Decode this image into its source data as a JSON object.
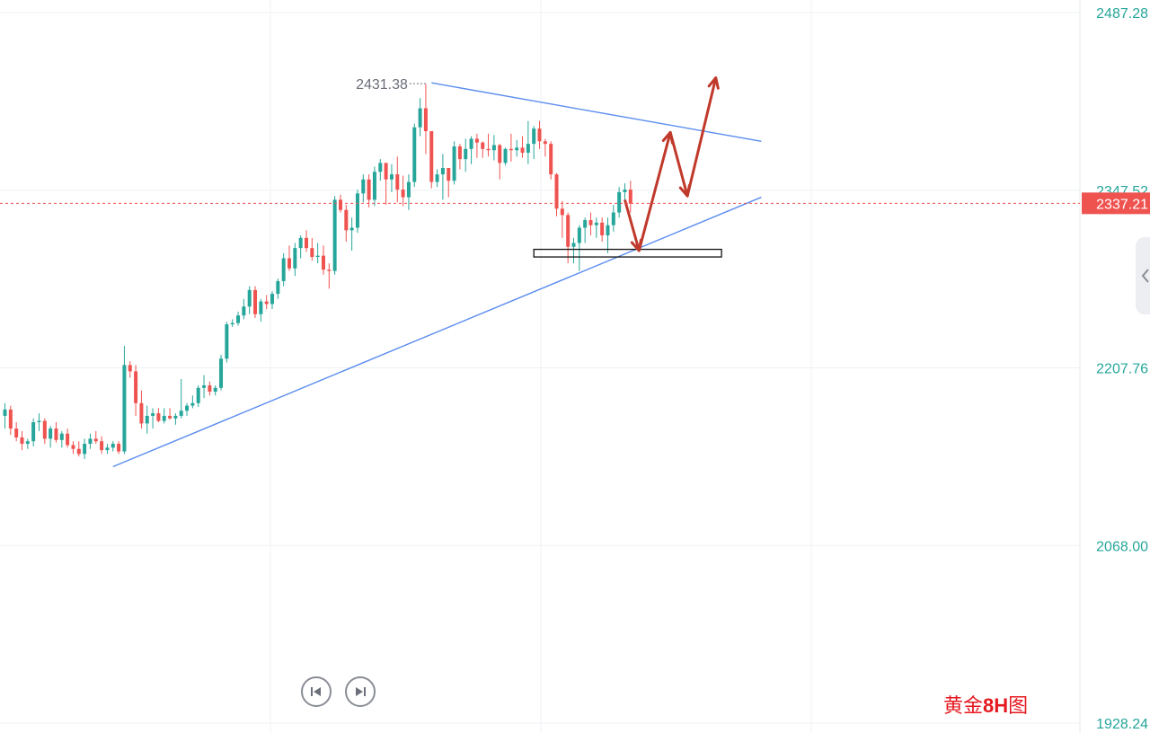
{
  "chart_data": {
    "type": "candlestick",
    "ohlc_notation": "[open, high, low, close]",
    "y_axis": {
      "position": "right",
      "ticks": [
        2487.28,
        2347.52,
        2207.76,
        2068.0,
        1928.24
      ],
      "tick_labels": [
        "2487.28",
        "2347.52",
        "2207.76",
        "2068.00",
        "1928.24"
      ]
    },
    "ylim": [
      1928.24,
      2487.28
    ],
    "grid": true,
    "last_price": 2337.21,
    "last_price_label": "2337.21",
    "peak_value": 2431.38,
    "peak_label": "2431.38",
    "candles": [
      [
        2170,
        2180,
        2160,
        2175
      ],
      [
        2175,
        2178,
        2155,
        2160
      ],
      [
        2160,
        2165,
        2150,
        2153
      ],
      [
        2153,
        2158,
        2143,
        2148
      ],
      [
        2148,
        2152,
        2144,
        2150
      ],
      [
        2150,
        2168,
        2146,
        2165
      ],
      [
        2165,
        2172,
        2158,
        2166
      ],
      [
        2166,
        2168,
        2148,
        2152
      ],
      [
        2152,
        2162,
        2145,
        2160
      ],
      [
        2160,
        2165,
        2149,
        2151
      ],
      [
        2151,
        2158,
        2145,
        2156
      ],
      [
        2156,
        2160,
        2145,
        2147
      ],
      [
        2147,
        2150,
        2140,
        2144
      ],
      [
        2144,
        2150,
        2138,
        2140
      ],
      [
        2140,
        2152,
        2136,
        2148
      ],
      [
        2148,
        2156,
        2144,
        2152
      ],
      [
        2152,
        2158,
        2148,
        2150
      ],
      [
        2150,
        2154,
        2140,
        2143
      ],
      [
        2143,
        2148,
        2140,
        2145
      ],
      [
        2145,
        2150,
        2142,
        2148
      ],
      [
        2148,
        2150,
        2140,
        2142
      ],
      [
        2142,
        2225,
        2140,
        2210
      ],
      [
        2210,
        2213,
        2200,
        2205
      ],
      [
        2205,
        2210,
        2170,
        2180
      ],
      [
        2180,
        2190,
        2160,
        2164
      ],
      [
        2164,
        2178,
        2156,
        2170
      ],
      [
        2170,
        2176,
        2160,
        2172
      ],
      [
        2172,
        2176,
        2165,
        2166
      ],
      [
        2166,
        2176,
        2164,
        2170
      ],
      [
        2170,
        2176,
        2167,
        2168
      ],
      [
        2168,
        2172,
        2163,
        2170
      ],
      [
        2170,
        2199,
        2168,
        2174
      ],
      [
        2174,
        2180,
        2170,
        2178
      ],
      [
        2178,
        2186,
        2176,
        2180
      ],
      [
        2180,
        2194,
        2177,
        2192
      ],
      [
        2192,
        2202,
        2184,
        2194
      ],
      [
        2194,
        2197,
        2186,
        2189
      ],
      [
        2189,
        2194,
        2186,
        2192
      ],
      [
        2192,
        2218,
        2190,
        2215
      ],
      [
        2215,
        2244,
        2212,
        2242
      ],
      [
        2242,
        2246,
        2240,
        2243
      ],
      [
        2243,
        2252,
        2241,
        2249
      ],
      [
        2249,
        2262,
        2246,
        2256
      ],
      [
        2256,
        2272,
        2250,
        2269
      ],
      [
        2269,
        2272,
        2247,
        2250
      ],
      [
        2250,
        2262,
        2244,
        2260
      ],
      [
        2260,
        2265,
        2254,
        2258
      ],
      [
        2258,
        2268,
        2254,
        2266
      ],
      [
        2266,
        2278,
        2262,
        2276
      ],
      [
        2276,
        2298,
        2272,
        2294
      ],
      [
        2294,
        2304,
        2284,
        2286
      ],
      [
        2286,
        2306,
        2280,
        2302
      ],
      [
        2302,
        2312,
        2294,
        2310
      ],
      [
        2310,
        2316,
        2299,
        2302
      ],
      [
        2302,
        2310,
        2292,
        2295
      ],
      [
        2295,
        2306,
        2290,
        2296
      ],
      [
        2296,
        2304,
        2281,
        2285
      ],
      [
        2285,
        2290,
        2270,
        2284
      ],
      [
        2284,
        2343,
        2281,
        2340
      ],
      [
        2340,
        2344,
        2330,
        2332
      ],
      [
        2332,
        2336,
        2307,
        2316
      ],
      [
        2316,
        2326,
        2300,
        2318
      ],
      [
        2318,
        2348,
        2314,
        2345
      ],
      [
        2345,
        2360,
        2338,
        2356
      ],
      [
        2356,
        2360,
        2334,
        2340
      ],
      [
        2340,
        2366,
        2335,
        2362
      ],
      [
        2362,
        2372,
        2355,
        2369
      ],
      [
        2369,
        2366,
        2336,
        2356
      ],
      [
        2356,
        2368,
        2346,
        2360
      ],
      [
        2360,
        2374,
        2338,
        2348
      ],
      [
        2348,
        2359,
        2335,
        2342
      ],
      [
        2342,
        2360,
        2332,
        2354
      ],
      [
        2354,
        2400,
        2350,
        2397
      ],
      [
        2397,
        2420,
        2390,
        2412
      ],
      [
        2412,
        2431,
        2376,
        2394
      ],
      [
        2394,
        2390,
        2349,
        2354
      ],
      [
        2354,
        2364,
        2350,
        2360
      ],
      [
        2360,
        2376,
        2340,
        2365
      ],
      [
        2365,
        2362,
        2342,
        2355
      ],
      [
        2355,
        2386,
        2352,
        2382
      ],
      [
        2382,
        2384,
        2364,
        2372
      ],
      [
        2372,
        2388,
        2362,
        2380
      ],
      [
        2380,
        2390,
        2368,
        2388
      ],
      [
        2388,
        2392,
        2373,
        2385
      ],
      [
        2385,
        2386,
        2373,
        2380
      ],
      [
        2380,
        2392,
        2374,
        2379
      ],
      [
        2379,
        2391,
        2371,
        2383
      ],
      [
        2383,
        2384,
        2356,
        2369
      ],
      [
        2369,
        2381,
        2367,
        2380
      ],
      [
        2380,
        2392,
        2370,
        2379
      ],
      [
        2379,
        2387,
        2374,
        2381
      ],
      [
        2381,
        2390,
        2373,
        2377
      ],
      [
        2377,
        2402,
        2368,
        2384
      ],
      [
        2384,
        2398,
        2372,
        2396
      ],
      [
        2396,
        2402,
        2380,
        2386
      ],
      [
        2386,
        2388,
        2374,
        2384
      ],
      [
        2384,
        2386,
        2356,
        2360
      ],
      [
        2360,
        2361,
        2327,
        2333
      ],
      [
        2333,
        2339,
        2310,
        2328
      ],
      [
        2328,
        2330,
        2290,
        2303
      ],
      [
        2303,
        2310,
        2290,
        2306
      ],
      [
        2306,
        2320,
        2284,
        2318
      ],
      [
        2318,
        2326,
        2306,
        2324
      ],
      [
        2324,
        2330,
        2312,
        2320
      ],
      [
        2320,
        2326,
        2310,
        2322
      ],
      [
        2322,
        2326,
        2307,
        2312
      ],
      [
        2312,
        2326,
        2298,
        2320
      ],
      [
        2320,
        2336,
        2315,
        2330
      ],
      [
        2330,
        2350,
        2326,
        2346
      ],
      [
        2346,
        2353,
        2338,
        2348
      ],
      [
        2348,
        2355,
        2330,
        2337
      ]
    ],
    "trend_lines": [
      {
        "name": "descending-resistance",
        "from": {
          "index": 75,
          "price": 2432
        },
        "to": {
          "index": 133,
          "price": 2386
        }
      },
      {
        "name": "ascending-support",
        "from": {
          "index": 19,
          "price": 2130
        },
        "to": {
          "index": 133,
          "price": 2342
        }
      }
    ],
    "support_zone": {
      "x_from_index": 93,
      "x_to_index": 126,
      "price_top": 2301,
      "price_bottom": 2295
    },
    "forecast_path": [
      {
        "index": 109,
        "price": 2340
      },
      {
        "index": 111.5,
        "price": 2300
      },
      {
        "index": 117,
        "price": 2393
      },
      {
        "index": 120,
        "price": 2343
      },
      {
        "index": 125,
        "price": 2436
      }
    ],
    "colors": {
      "up": "#26a69a",
      "down": "#ef5350",
      "trend_line": "#5b8def",
      "forecast_arrow": "#c0392b",
      "price_tag": "#ef5350",
      "axis_text": "#26a69a"
    }
  },
  "caption": {
    "part1": "黄金",
    "part2": "8H",
    "part3": "图",
    "color": "#e5181f"
  },
  "controls": {
    "scroll_left_icon": "skip-back-icon",
    "scroll_right_icon": "skip-forward-icon",
    "side_panel_icon": "chevron-left-icon"
  }
}
